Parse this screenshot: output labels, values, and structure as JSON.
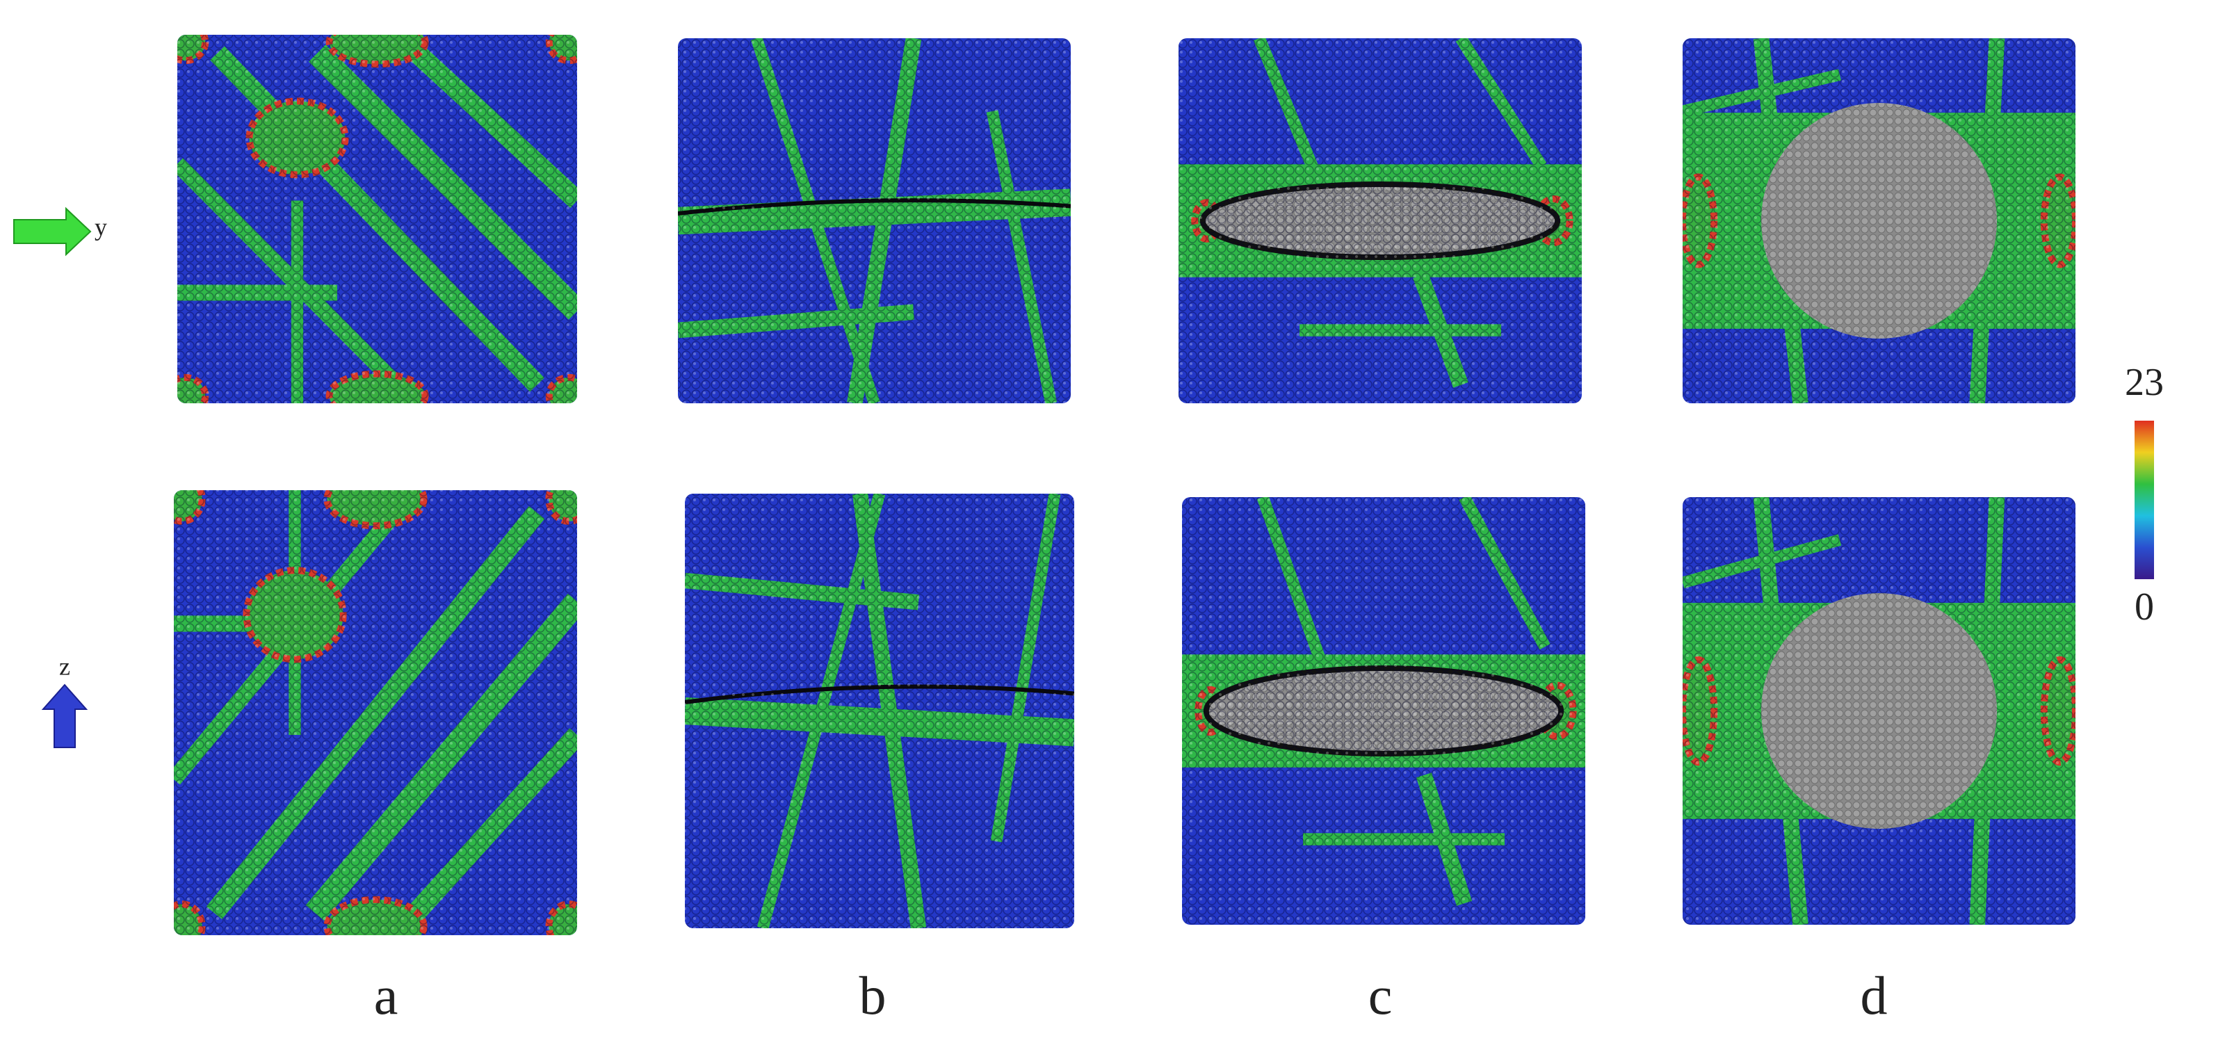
{
  "axes": {
    "y_label": "y",
    "z_label": "z"
  },
  "colorbar": {
    "max_label": "23",
    "min_label": "0"
  },
  "panels": [
    {
      "label": "a"
    },
    {
      "label": "b"
    },
    {
      "label": "c"
    },
    {
      "label": "d"
    }
  ]
}
